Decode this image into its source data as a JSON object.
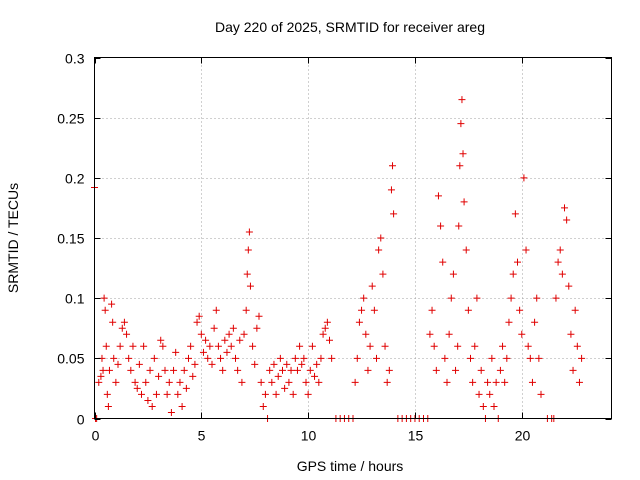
{
  "chart_data": {
    "type": "scatter",
    "title": "Day 220 of 2025, SRMTID for receiver areg",
    "xlabel": "GPS time / hours",
    "ylabel": "SRMTID / TECUs",
    "xlim": [
      0,
      24.2
    ],
    "ylim": [
      0,
      0.3
    ],
    "xticks": [
      0,
      5,
      10,
      15,
      20
    ],
    "xtick_labels": [
      "0",
      "5",
      "10",
      "15",
      "20"
    ],
    "yticks": [
      0,
      0.05,
      0.1,
      0.15,
      0.2,
      0.25,
      0.3
    ],
    "ytick_labels": [
      "0",
      "0.05",
      "0.1",
      "0.15",
      "0.2",
      "0.25",
      "0.3"
    ],
    "grid": true,
    "marker": "+",
    "color": "#e00000",
    "series": [
      {
        "name": "SRMTID",
        "points": [
          [
            0.0,
            0.192
          ],
          [
            0.05,
            0.0
          ],
          [
            0.1,
            0.0
          ],
          [
            0.2,
            0.03
          ],
          [
            0.3,
            0.035
          ],
          [
            0.35,
            0.05
          ],
          [
            0.4,
            0.04
          ],
          [
            0.45,
            0.1
          ],
          [
            0.5,
            0.09
          ],
          [
            0.55,
            0.06
          ],
          [
            0.6,
            0.02
          ],
          [
            0.65,
            0.01
          ],
          [
            0.7,
            0.04
          ],
          [
            0.8,
            0.095
          ],
          [
            0.85,
            0.08
          ],
          [
            0.9,
            0.05
          ],
          [
            1.0,
            0.03
          ],
          [
            1.1,
            0.045
          ],
          [
            1.2,
            0.06
          ],
          [
            1.3,
            0.075
          ],
          [
            1.4,
            0.08
          ],
          [
            1.5,
            0.07
          ],
          [
            1.6,
            0.05
          ],
          [
            1.7,
            0.04
          ],
          [
            1.8,
            0.06
          ],
          [
            1.9,
            0.03
          ],
          [
            2.0,
            0.025
          ],
          [
            2.1,
            0.045
          ],
          [
            2.2,
            0.02
          ],
          [
            2.3,
            0.06
          ],
          [
            2.4,
            0.03
          ],
          [
            2.5,
            0.015
          ],
          [
            2.6,
            0.04
          ],
          [
            2.7,
            0.01
          ],
          [
            2.8,
            0.05
          ],
          [
            2.9,
            0.02
          ],
          [
            3.0,
            0.035
          ],
          [
            3.1,
            0.065
          ],
          [
            3.2,
            0.06
          ],
          [
            3.3,
            0.04
          ],
          [
            3.4,
            0.02
          ],
          [
            3.5,
            0.03
          ],
          [
            3.6,
            0.005
          ],
          [
            3.7,
            0.04
          ],
          [
            3.8,
            0.055
          ],
          [
            3.9,
            0.02
          ],
          [
            4.0,
            0.03
          ],
          [
            4.1,
            0.01
          ],
          [
            4.2,
            0.04
          ],
          [
            4.3,
            0.025
          ],
          [
            4.4,
            0.05
          ],
          [
            4.5,
            0.06
          ],
          [
            4.6,
            0.035
          ],
          [
            4.7,
            0.045
          ],
          [
            4.8,
            0.08
          ],
          [
            4.9,
            0.085
          ],
          [
            5.0,
            0.07
          ],
          [
            5.1,
            0.055
          ],
          [
            5.2,
            0.065
          ],
          [
            5.3,
            0.05
          ],
          [
            5.4,
            0.06
          ],
          [
            5.5,
            0.045
          ],
          [
            5.6,
            0.075
          ],
          [
            5.7,
            0.09
          ],
          [
            5.8,
            0.06
          ],
          [
            5.9,
            0.05
          ],
          [
            6.0,
            0.04
          ],
          [
            6.1,
            0.065
          ],
          [
            6.2,
            0.055
          ],
          [
            6.3,
            0.07
          ],
          [
            6.4,
            0.06
          ],
          [
            6.5,
            0.075
          ],
          [
            6.6,
            0.05
          ],
          [
            6.7,
            0.04
          ],
          [
            6.8,
            0.065
          ],
          [
            6.9,
            0.03
          ],
          [
            7.0,
            0.07
          ],
          [
            7.1,
            0.09
          ],
          [
            7.15,
            0.12
          ],
          [
            7.2,
            0.14
          ],
          [
            7.25,
            0.155
          ],
          [
            7.3,
            0.11
          ],
          [
            7.4,
            0.06
          ],
          [
            7.5,
            0.045
          ],
          [
            7.6,
            0.075
          ],
          [
            7.7,
            0.085
          ],
          [
            7.8,
            0.03
          ],
          [
            7.9,
            0.01
          ],
          [
            8.0,
            0.02
          ],
          [
            8.1,
            0.0
          ],
          [
            8.2,
            0.04
          ],
          [
            8.3,
            0.03
          ],
          [
            8.4,
            0.045
          ],
          [
            8.5,
            0.02
          ],
          [
            8.6,
            0.035
          ],
          [
            8.7,
            0.05
          ],
          [
            8.8,
            0.04
          ],
          [
            8.9,
            0.025
          ],
          [
            9.0,
            0.045
          ],
          [
            9.1,
            0.03
          ],
          [
            9.2,
            0.04
          ],
          [
            9.3,
            0.02
          ],
          [
            9.4,
            0.05
          ],
          [
            9.5,
            0.04
          ],
          [
            9.6,
            0.06
          ],
          [
            9.7,
            0.045
          ],
          [
            9.8,
            0.05
          ],
          [
            9.9,
            0.03
          ],
          [
            10.0,
            0.02
          ],
          [
            10.1,
            0.04
          ],
          [
            10.2,
            0.06
          ],
          [
            10.3,
            0.035
          ],
          [
            10.4,
            0.045
          ],
          [
            10.5,
            0.03
          ],
          [
            10.6,
            0.05
          ],
          [
            10.7,
            0.07
          ],
          [
            10.8,
            0.075
          ],
          [
            10.9,
            0.08
          ],
          [
            11.0,
            0.065
          ],
          [
            11.1,
            0.05
          ],
          [
            11.3,
            0.0
          ],
          [
            11.5,
            0.0
          ],
          [
            11.7,
            0.0
          ],
          [
            11.9,
            0.0
          ],
          [
            12.1,
            0.0
          ],
          [
            12.2,
            0.03
          ],
          [
            12.3,
            0.05
          ],
          [
            12.4,
            0.08
          ],
          [
            12.5,
            0.09
          ],
          [
            12.6,
            0.1
          ],
          [
            12.7,
            0.07
          ],
          [
            12.8,
            0.04
          ],
          [
            12.9,
            0.06
          ],
          [
            13.0,
            0.11
          ],
          [
            13.1,
            0.09
          ],
          [
            13.2,
            0.05
          ],
          [
            13.3,
            0.14
          ],
          [
            13.4,
            0.15
          ],
          [
            13.5,
            0.12
          ],
          [
            13.6,
            0.06
          ],
          [
            13.7,
            0.03
          ],
          [
            13.8,
            0.04
          ],
          [
            13.9,
            0.19
          ],
          [
            13.95,
            0.21
          ],
          [
            14.0,
            0.17
          ],
          [
            14.2,
            0.0
          ],
          [
            14.4,
            0.0
          ],
          [
            14.6,
            0.0
          ],
          [
            14.8,
            0.0
          ],
          [
            15.0,
            0.0
          ],
          [
            15.2,
            0.0
          ],
          [
            15.4,
            0.0
          ],
          [
            15.6,
            0.0
          ],
          [
            15.7,
            0.07
          ],
          [
            15.8,
            0.09
          ],
          [
            15.9,
            0.06
          ],
          [
            16.0,
            0.04
          ],
          [
            16.1,
            0.185
          ],
          [
            16.2,
            0.16
          ],
          [
            16.3,
            0.13
          ],
          [
            16.4,
            0.05
          ],
          [
            16.5,
            0.03
          ],
          [
            16.6,
            0.07
          ],
          [
            16.7,
            0.1
          ],
          [
            16.8,
            0.12
          ],
          [
            16.9,
            0.04
          ],
          [
            17.0,
            0.06
          ],
          [
            17.05,
            0.16
          ],
          [
            17.1,
            0.21
          ],
          [
            17.15,
            0.245
          ],
          [
            17.2,
            0.265
          ],
          [
            17.25,
            0.22
          ],
          [
            17.3,
            0.18
          ],
          [
            17.4,
            0.14
          ],
          [
            17.5,
            0.09
          ],
          [
            17.6,
            0.05
          ],
          [
            17.7,
            0.03
          ],
          [
            17.8,
            0.06
          ],
          [
            17.9,
            0.1
          ],
          [
            18.0,
            0.02
          ],
          [
            18.1,
            0.04
          ],
          [
            18.2,
            0.01
          ],
          [
            18.3,
            0.0
          ],
          [
            18.4,
            0.03
          ],
          [
            18.5,
            0.02
          ],
          [
            18.6,
            0.05
          ],
          [
            18.7,
            0.01
          ],
          [
            18.8,
            0.03
          ],
          [
            18.9,
            0.0
          ],
          [
            19.0,
            0.04
          ],
          [
            19.1,
            0.06
          ],
          [
            19.2,
            0.03
          ],
          [
            19.3,
            0.05
          ],
          [
            19.4,
            0.08
          ],
          [
            19.5,
            0.1
          ],
          [
            19.6,
            0.12
          ],
          [
            19.7,
            0.17
          ],
          [
            19.8,
            0.13
          ],
          [
            19.9,
            0.09
          ],
          [
            20.0,
            0.07
          ],
          [
            20.1,
            0.2
          ],
          [
            20.2,
            0.14
          ],
          [
            20.3,
            0.06
          ],
          [
            20.4,
            0.05
          ],
          [
            20.5,
            0.03
          ],
          [
            20.6,
            0.08
          ],
          [
            20.7,
            0.1
          ],
          [
            20.8,
            0.05
          ],
          [
            20.9,
            0.02
          ],
          [
            21.2,
            0.0
          ],
          [
            21.4,
            0.0
          ],
          [
            21.5,
            0.0
          ],
          [
            21.6,
            0.1
          ],
          [
            21.7,
            0.13
          ],
          [
            21.8,
            0.14
          ],
          [
            21.9,
            0.12
          ],
          [
            22.0,
            0.175
          ],
          [
            22.1,
            0.165
          ],
          [
            22.2,
            0.11
          ],
          [
            22.3,
            0.07
          ],
          [
            22.4,
            0.04
          ],
          [
            22.5,
            0.09
          ],
          [
            22.6,
            0.06
          ],
          [
            22.7,
            0.03
          ],
          [
            22.8,
            0.05
          ]
        ]
      }
    ]
  }
}
